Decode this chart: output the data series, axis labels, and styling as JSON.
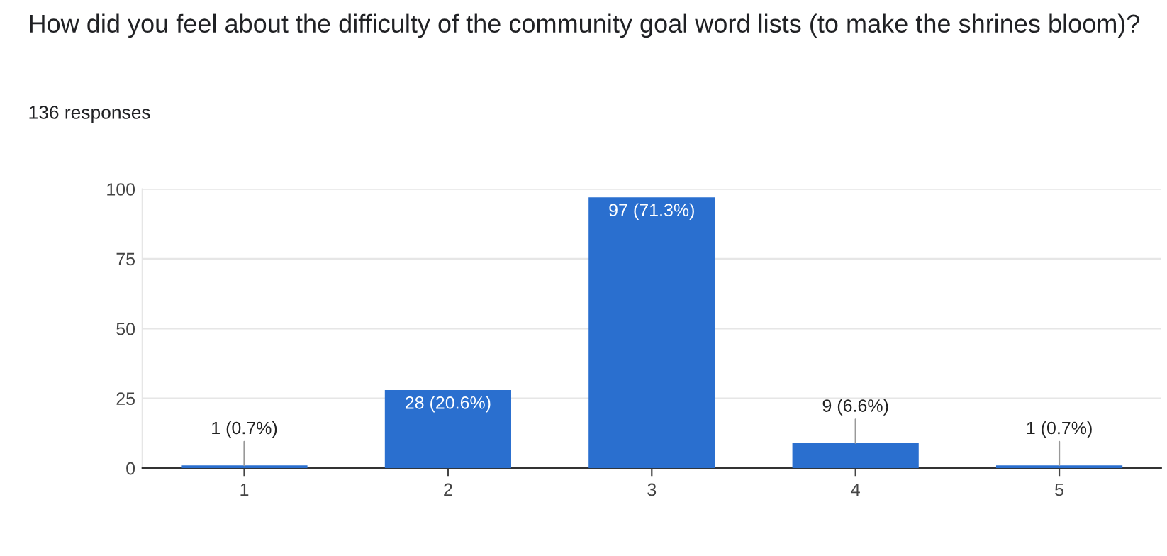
{
  "chart_data": {
    "type": "bar",
    "title": "How did you feel about the difficulty of the community goal word lists (to make the shrines bloom)?",
    "subtitle": "136 responses",
    "categories": [
      "1",
      "2",
      "3",
      "4",
      "5"
    ],
    "values": [
      1,
      28,
      97,
      9,
      1
    ],
    "value_labels": [
      "1 (0.7%)",
      "28 (20.6%)",
      "97 (71.3%)",
      "9 (6.6%)",
      "1 (0.7%)"
    ],
    "color": "#2a6fcf",
    "ylim": [
      0,
      100
    ],
    "yticks": [
      0,
      25,
      50,
      75,
      100
    ],
    "grid": "y",
    "legend": false
  }
}
